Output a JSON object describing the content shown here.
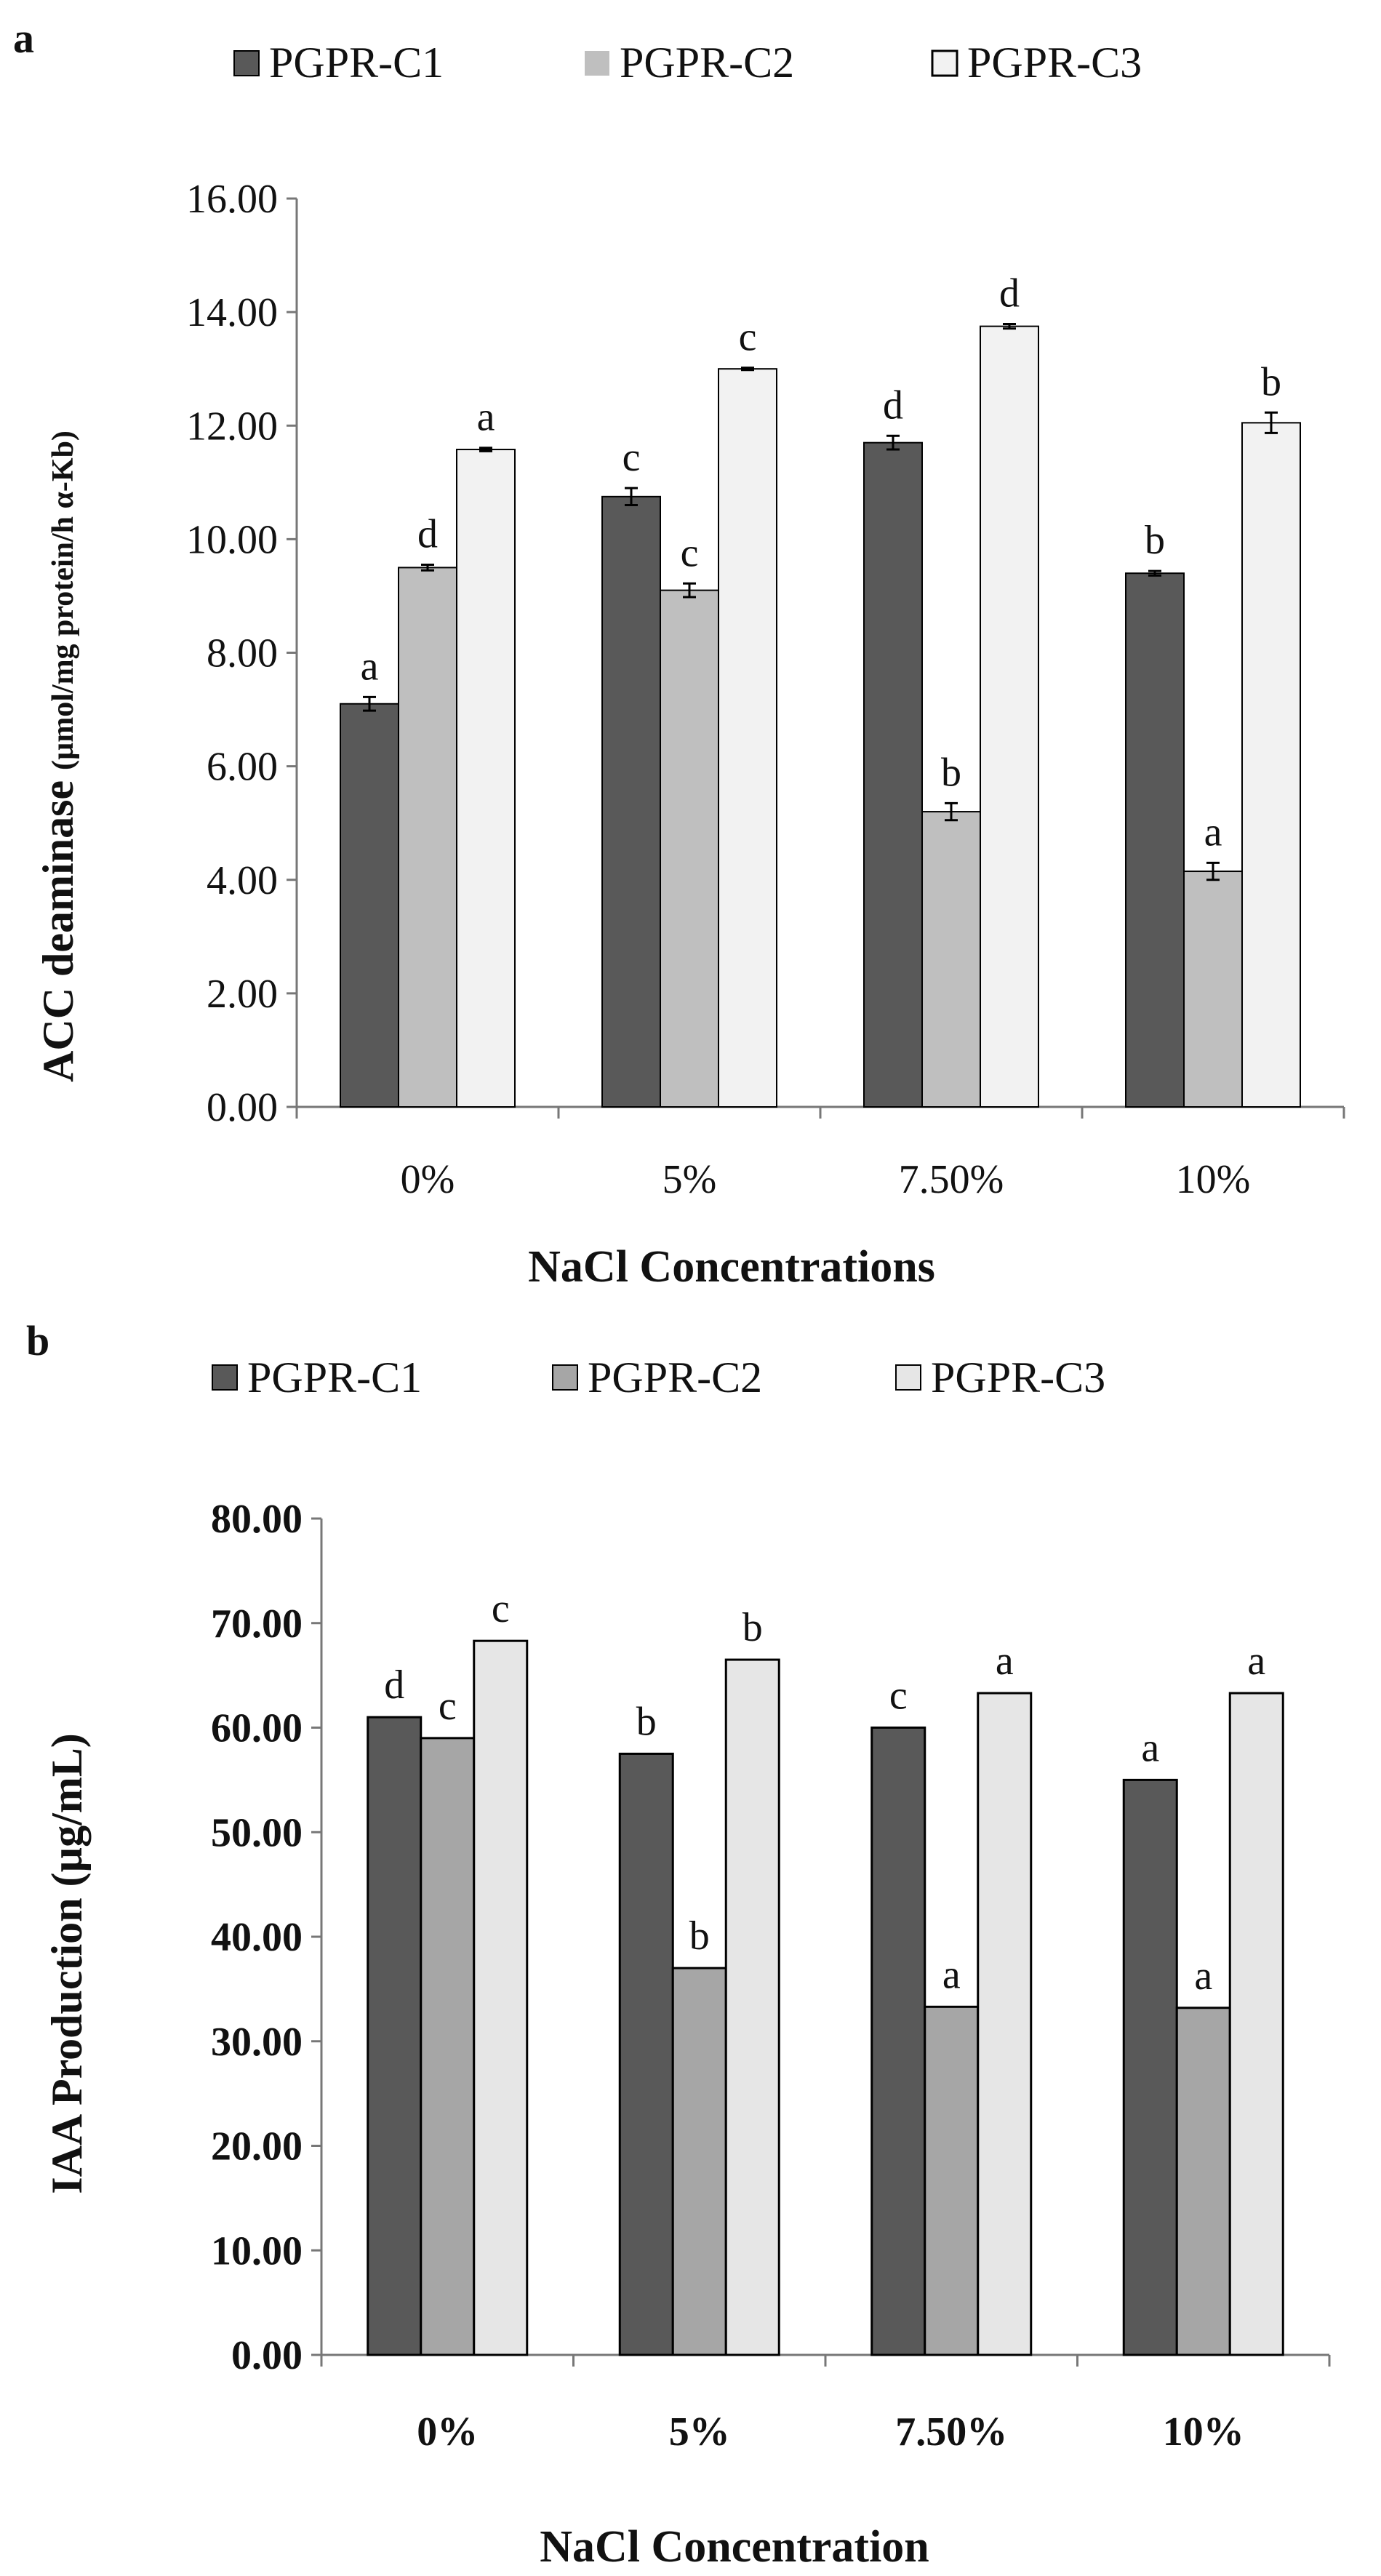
{
  "chart_data": [
    {
      "panel": "a",
      "type": "bar",
      "categories": [
        "0%",
        "5%",
        "7.50%",
        "10%"
      ],
      "series": [
        {
          "name": "PGPR-C1",
          "color": "#595959",
          "values": [
            7.1,
            10.75,
            11.7,
            9.4
          ],
          "errors": [
            0.12,
            0.15,
            0.12,
            0.04
          ],
          "letters": [
            "a",
            "c",
            "d",
            "b"
          ]
        },
        {
          "name": "PGPR-C2",
          "color": "#bfbfbf",
          "values": [
            9.5,
            9.1,
            5.2,
            4.15
          ],
          "errors": [
            0.05,
            0.12,
            0.15,
            0.15
          ],
          "letters": [
            "d",
            "c",
            "b",
            "a"
          ]
        },
        {
          "name": "PGPR-C3",
          "color": "#f2f2f2",
          "values": [
            11.58,
            13.0,
            13.75,
            12.05
          ],
          "errors": [
            0.03,
            0.02,
            0.04,
            0.18
          ],
          "letters": [
            "a",
            "c",
            "d",
            "b"
          ]
        }
      ],
      "ylim": [
        0,
        16
      ],
      "yticks": [
        "0.00",
        "2.00",
        "4.00",
        "6.00",
        "8.00",
        "10.00",
        "12.00",
        "14.00",
        "16.00"
      ],
      "ylabel": "ACC deaminase",
      "ylabel_units": "(µmol/mg protein/h α-Kb)",
      "xlabel": "NaCl Concentrations",
      "legend_position": "top"
    },
    {
      "panel": "b",
      "type": "bar",
      "categories": [
        "0%",
        "5%",
        "7.50%",
        "10%"
      ],
      "series": [
        {
          "name": "PGPR-C1",
          "color": "#595959",
          "values": [
            61.0,
            57.5,
            60.0,
            55.0
          ],
          "letters": [
            "d",
            "b",
            "c",
            "a"
          ]
        },
        {
          "name": "PGPR-C2",
          "color": "#a6a6a6",
          "values": [
            59.0,
            37.0,
            33.3,
            33.2
          ],
          "letters": [
            "c",
            "b",
            "a",
            "a"
          ]
        },
        {
          "name": "PGPR-C3",
          "color": "#e6e6e6",
          "values": [
            68.3,
            66.5,
            63.3,
            63.3
          ],
          "letters": [
            "c",
            "b",
            "a",
            "a"
          ]
        }
      ],
      "ylim": [
        0,
        80
      ],
      "yticks": [
        "0.00",
        "10.00",
        "20.00",
        "30.00",
        "40.00",
        "50.00",
        "60.00",
        "70.00",
        "80.00"
      ],
      "ylabel": "IAA Production (µg/mL)",
      "xlabel": "NaCl Concentration",
      "legend_position": "top"
    }
  ]
}
